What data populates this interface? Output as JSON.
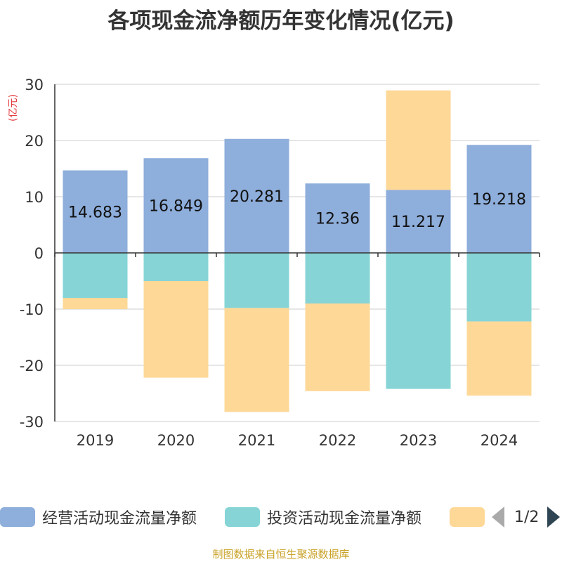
{
  "title": "各项现金流净额历年变化情况(亿元)",
  "unit": "(亿元)",
  "legend": [
    {
      "label": "经营活动现金流量净额",
      "color": "#8eaedb"
    },
    {
      "label": "投资活动现金流量净额",
      "color": "#86d4d6"
    },
    {
      "label": "",
      "color": "#fed897"
    }
  ],
  "pager": "1/2",
  "footer": "制图数据来自恒生聚源数据库",
  "chart_data": {
    "type": "bar",
    "stacked": true,
    "categories": [
      "2019",
      "2020",
      "2021",
      "2022",
      "2023",
      "2024"
    ],
    "ylim": [
      -30,
      30
    ],
    "yticks": [
      30,
      20,
      10,
      0,
      -10,
      -20,
      -30
    ],
    "series": [
      {
        "name": "经营活动现金流量净额",
        "color": "#8eaedb",
        "values": [
          14.683,
          16.849,
          20.281,
          12.36,
          11.217,
          19.218
        ],
        "labels": [
          "14.683",
          "16.849",
          "20.281",
          "12.36",
          "11.217",
          "19.218"
        ]
      },
      {
        "name": "投资活动现金流量净额",
        "color": "#86d4d6",
        "values": [
          -8.0,
          -5.0,
          -9.8,
          -9.0,
          -24.2,
          -12.2
        ]
      },
      {
        "name": "",
        "color": "#fed897",
        "values": [
          -2.0,
          -17.2,
          -18.5,
          -15.6,
          17.7,
          -13.2
        ]
      }
    ]
  }
}
